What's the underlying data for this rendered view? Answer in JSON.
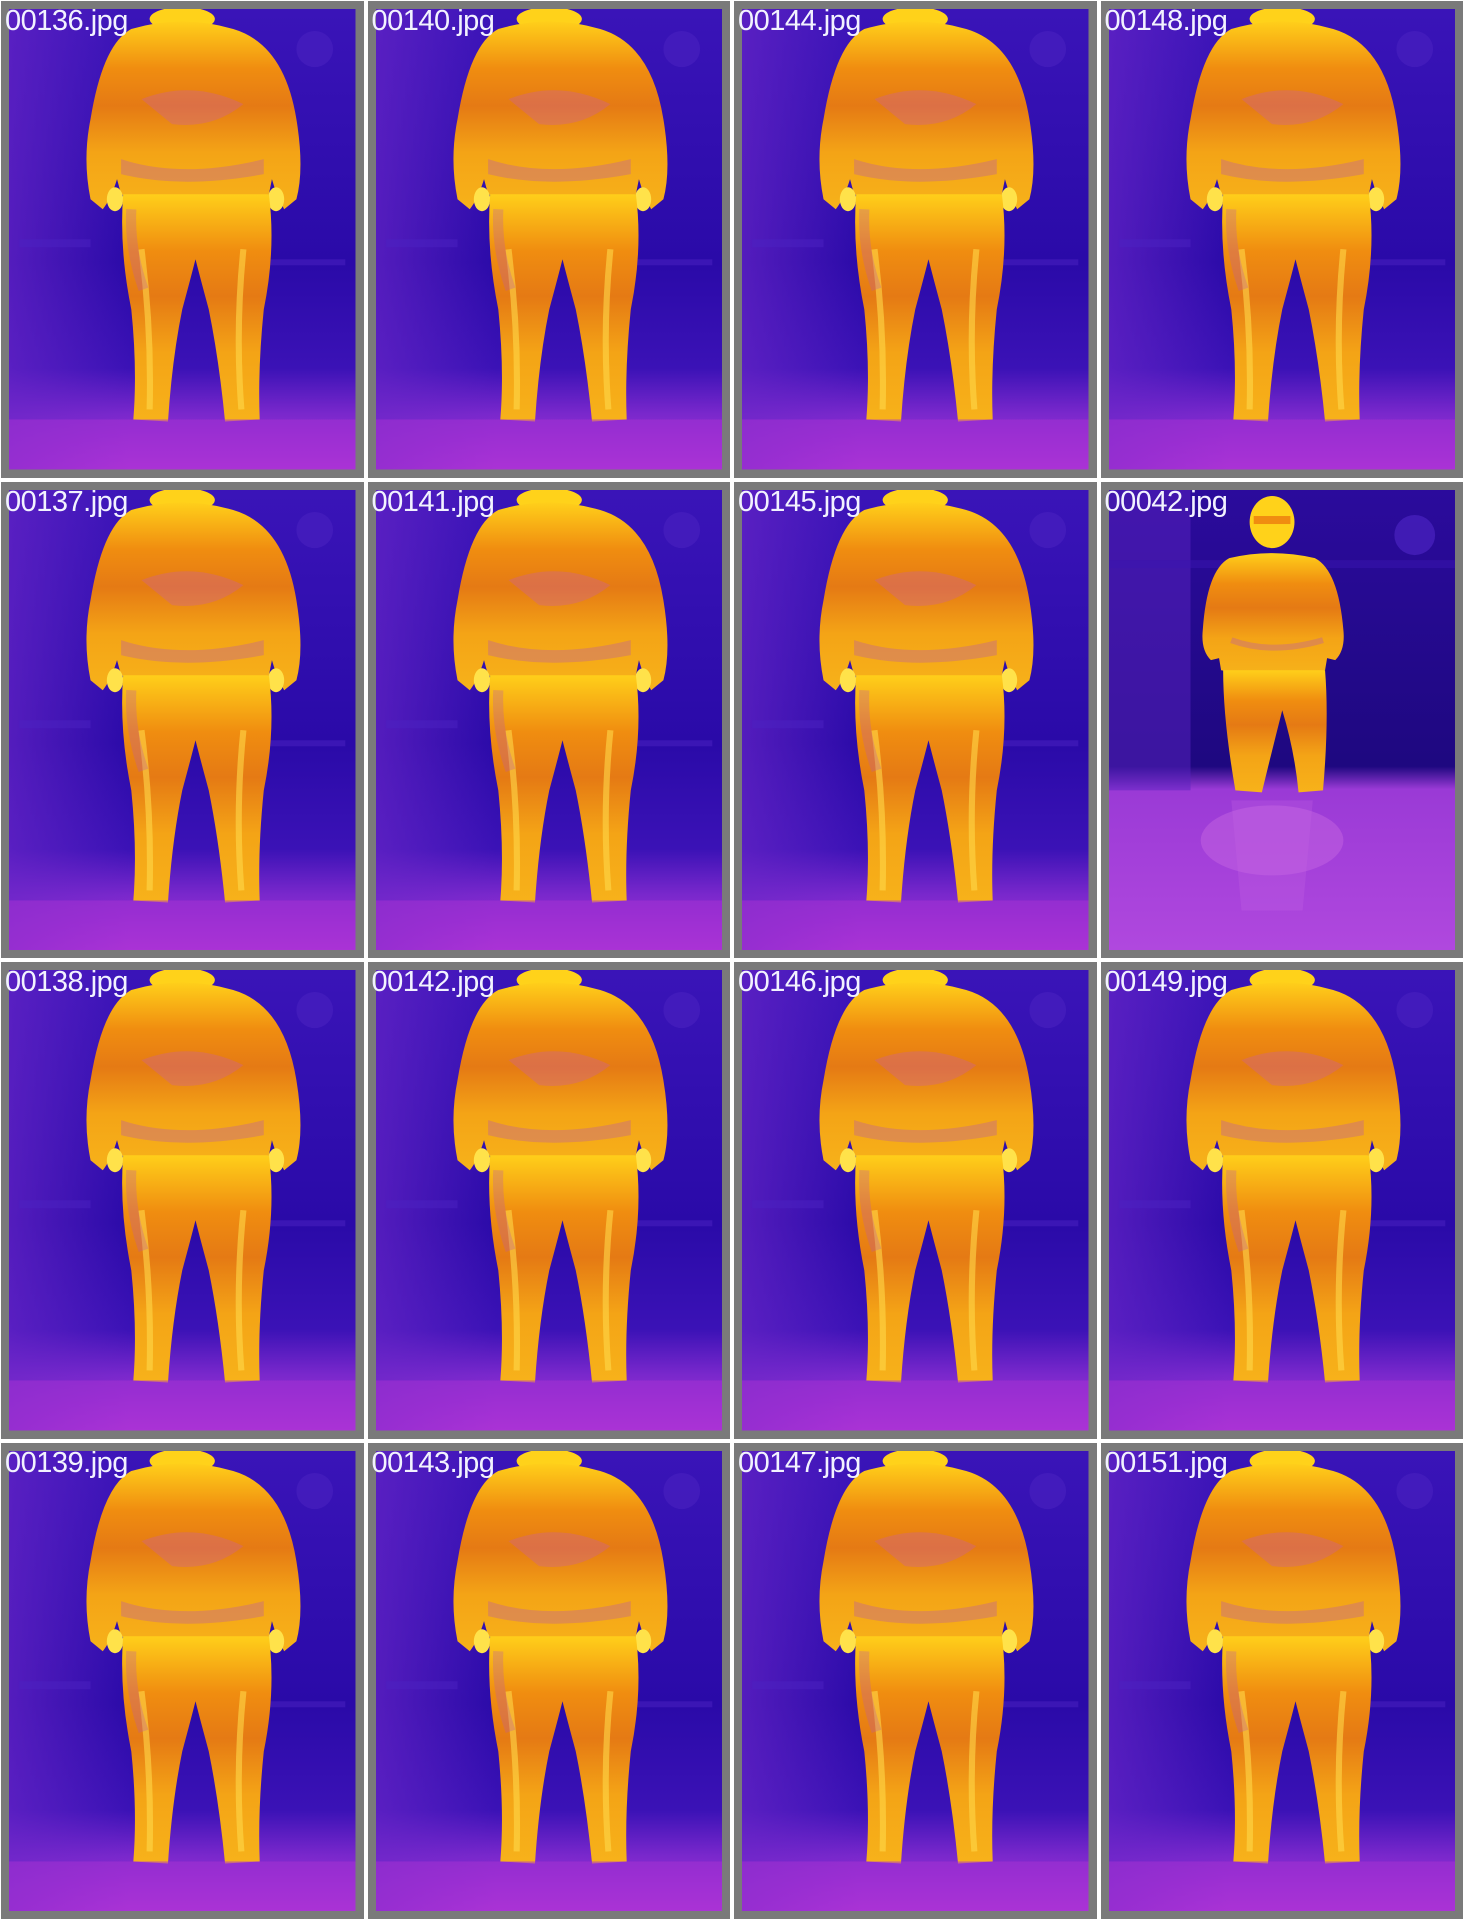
{
  "grid": {
    "columns": 4,
    "rows": 4,
    "cells": [
      {
        "filename": "00136.jpg",
        "variant": "close"
      },
      {
        "filename": "00140.jpg",
        "variant": "close"
      },
      {
        "filename": "00144.jpg",
        "variant": "close"
      },
      {
        "filename": "00148.jpg",
        "variant": "close"
      },
      {
        "filename": "00137.jpg",
        "variant": "close"
      },
      {
        "filename": "00141.jpg",
        "variant": "close"
      },
      {
        "filename": "00145.jpg",
        "variant": "close"
      },
      {
        "filename": "00042.jpg",
        "variant": "far"
      },
      {
        "filename": "00138.jpg",
        "variant": "close"
      },
      {
        "filename": "00142.jpg",
        "variant": "close"
      },
      {
        "filename": "00146.jpg",
        "variant": "close"
      },
      {
        "filename": "00149.jpg",
        "variant": "close"
      },
      {
        "filename": "00139.jpg",
        "variant": "close"
      },
      {
        "filename": "00143.jpg",
        "variant": "close"
      },
      {
        "filename": "00147.jpg",
        "variant": "close"
      },
      {
        "filename": "00151.jpg",
        "variant": "close"
      }
    ]
  },
  "palette": {
    "frame": "#7a7a7a",
    "background_cold": "#2a0aa8",
    "background_mid": "#4b1ec4",
    "floor": "#a52fd6",
    "body_warm": "#f0960e",
    "body_hot": "#ffd21a",
    "label_text": "#f2f2ff"
  }
}
